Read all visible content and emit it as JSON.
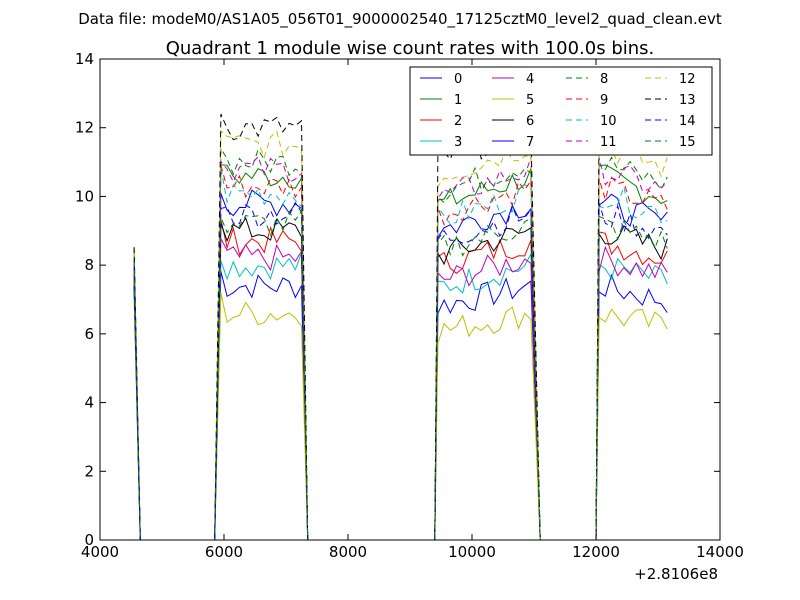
{
  "suptitle": "Data file: modeM0/AS1A05_056T01_9000002540_17125cztM0_level2_quad_clean.evt",
  "chart_data": {
    "type": "line",
    "title": "Quadrant 1 module wise count rates with 100.0s bins.",
    "xlabel": "",
    "ylabel": "",
    "x_offset_label": "+2.8106e8",
    "xlim": [
      4000,
      14000
    ],
    "ylim": [
      0,
      14
    ],
    "xticks": [
      4000,
      6000,
      8000,
      10000,
      12000,
      14000
    ],
    "xtick_labels": [
      "4000",
      "6000",
      "8000",
      "10000",
      "12000",
      "14000"
    ],
    "yticks": [
      0,
      2,
      4,
      6,
      8,
      10,
      12,
      14
    ],
    "ytick_labels": [
      "0",
      "2",
      "4",
      "6",
      "8",
      "10",
      "12",
      "14"
    ],
    "grid": false,
    "legend_position": "upper-right",
    "legend_columns": 4,
    "segments": [
      {
        "start": 4550,
        "end": 4560,
        "step": 100,
        "mode": "spike"
      },
      {
        "start": 5950,
        "end": 7250,
        "step": 100,
        "mode": "flat"
      },
      {
        "start": 9450,
        "end": 10950,
        "step": 100,
        "mode": "rise"
      },
      {
        "start": 12050,
        "end": 13150,
        "step": 100,
        "mode": "decay"
      }
    ],
    "zero_points": [
      4650,
      5850,
      7350,
      9400,
      11100,
      12000
    ],
    "series": [
      {
        "name": "0",
        "color": "#0000ff",
        "dash": "solid",
        "level": 7.4
      },
      {
        "name": "1",
        "color": "#008000",
        "dash": "solid",
        "level": 10.6
      },
      {
        "name": "2",
        "color": "#ff0000",
        "dash": "solid",
        "level": 8.7
      },
      {
        "name": "3",
        "color": "#00bfbf",
        "dash": "solid",
        "level": 8.0
      },
      {
        "name": "4",
        "color": "#bf00bf",
        "dash": "solid",
        "level": 8.2
      },
      {
        "name": "5",
        "color": "#bfbf00",
        "dash": "solid",
        "level": 6.6
      },
      {
        "name": "6",
        "color": "#000000",
        "dash": "solid",
        "level": 9.0
      },
      {
        "name": "7",
        "color": "#0000ff",
        "dash": "solid",
        "level": 9.8
      },
      {
        "name": "8",
        "color": "#008000",
        "dash": "dashed",
        "level": 11.0
      },
      {
        "name": "9",
        "color": "#ff0000",
        "dash": "dashed",
        "level": 10.3
      },
      {
        "name": "10",
        "color": "#00bfbf",
        "dash": "dashed",
        "level": 10.1
      },
      {
        "name": "11",
        "color": "#bf00bf",
        "dash": "dashed",
        "level": 10.8
      },
      {
        "name": "12",
        "color": "#bfbf00",
        "dash": "dashed",
        "level": 11.5
      },
      {
        "name": "13",
        "color": "#000000",
        "dash": "dashed",
        "level": 12.0
      },
      {
        "name": "14",
        "color": "#0000ff",
        "dash": "dashed",
        "level": 9.5
      },
      {
        "name": "15",
        "color": "#008000",
        "dash": "dashed",
        "level": 9.2
      }
    ]
  }
}
